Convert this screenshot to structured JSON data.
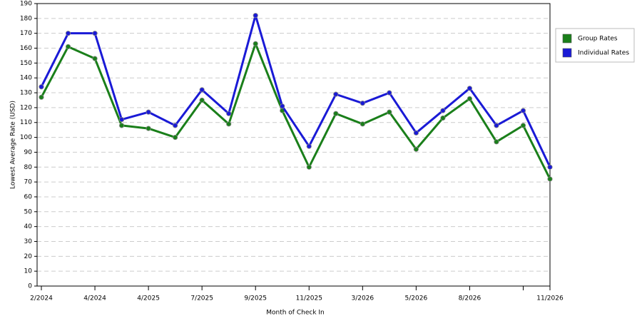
{
  "chart_data": {
    "type": "line",
    "x_label": "Month of Check In",
    "y_label": "Lowest Average Rate (USD)",
    "categories": [
      "2/2024",
      null,
      "4/2024",
      null,
      "4/2025",
      null,
      "7/2025",
      null,
      "9/2025",
      null,
      "11/2025",
      null,
      "3/2026",
      null,
      "5/2026",
      null,
      "8/2026",
      null,
      null,
      "11/2026"
    ],
    "series": [
      {
        "name": "Group Rates",
        "color": "#1a7f1a",
        "values": [
          127,
          161,
          153,
          108,
          106,
          100,
          125,
          109,
          163,
          118,
          80,
          116,
          109,
          117,
          92,
          113,
          126,
          97,
          108,
          72
        ]
      },
      {
        "name": "Individual Rates",
        "color": "#1a1ad6",
        "values": [
          134,
          170,
          170,
          112,
          117,
          108,
          132,
          116,
          182,
          121,
          94,
          129,
          123,
          130,
          103,
          118,
          133,
          108,
          118,
          80
        ]
      }
    ],
    "ylim": [
      0,
      190
    ],
    "yticks": [
      0,
      10,
      20,
      30,
      40,
      50,
      60,
      70,
      80,
      90,
      100,
      110,
      120,
      130,
      140,
      150,
      160,
      170,
      180,
      190
    ],
    "grid": true,
    "legend": "right"
  }
}
